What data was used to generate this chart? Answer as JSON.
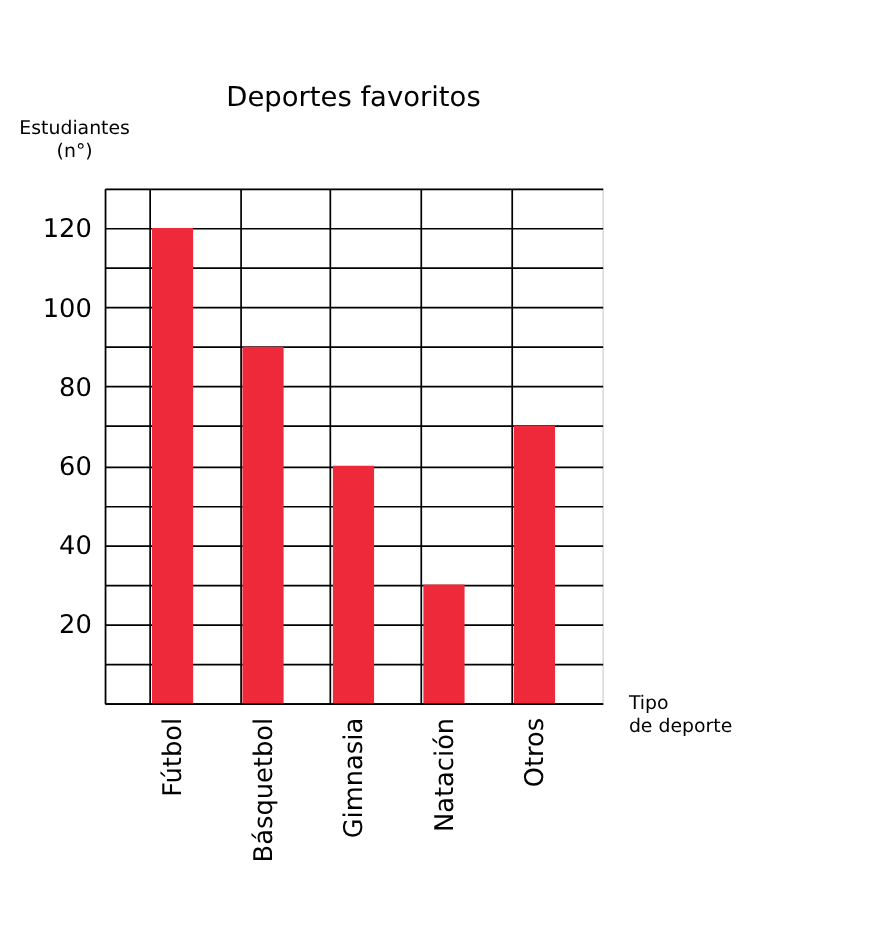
{
  "chart_data": {
    "type": "bar",
    "title": "Deportes favoritos",
    "ylabel": "Estudiantes\n(n°)",
    "xlabel": "Tipo\nde deporte",
    "categories": [
      "Fútbol",
      "Básquetbol",
      "Gimnasia",
      "Natación",
      "Otros"
    ],
    "values": [
      120,
      90,
      60,
      30,
      70
    ],
    "color": "#ee2a3a",
    "ylim": [
      0,
      130
    ],
    "yticks": [
      {
        "value": 0,
        "label": null
      },
      {
        "value": 10,
        "label": null
      },
      20,
      {
        "value": 30,
        "label": null
      },
      40,
      {
        "value": 50,
        "label": null
      },
      60,
      {
        "value": 70,
        "label": null
      },
      80,
      {
        "value": 90,
        "label": null
      },
      100,
      {
        "value": 110,
        "label": null
      },
      120,
      {
        "value": 130,
        "label": null
      }
    ],
    "grid": true
  }
}
